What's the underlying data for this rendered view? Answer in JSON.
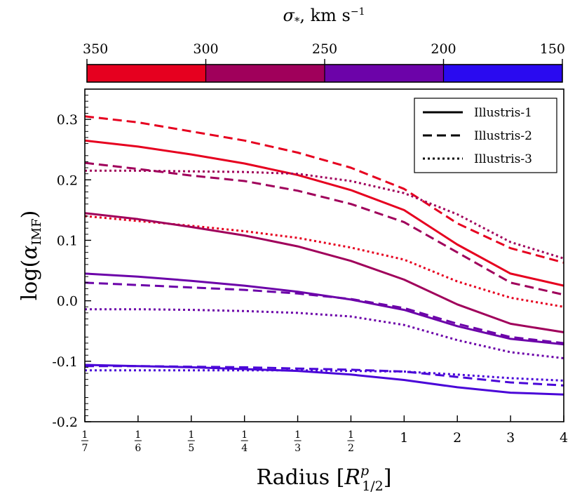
{
  "chart_data": {
    "type": "line",
    "title": "",
    "xlabel": "Radius [R^p_{1/2}]",
    "ylabel": "log(α_IMF)",
    "ylim": [
      -0.2,
      0.35
    ],
    "x_ticks": [
      "1/7",
      "1/6",
      "1/5",
      "1/4",
      "1/3",
      "1/2",
      "1",
      "2",
      "3",
      "4"
    ],
    "y_ticks": [
      -0.2,
      -0.1,
      0.0,
      0.1,
      0.2,
      0.3
    ],
    "y_tick_labels": [
      "-0.2",
      "-0.1",
      "0.0",
      "0.1",
      "0.2",
      "0.3"
    ],
    "legend": {
      "position": "top-right",
      "entries": [
        {
          "label": "Illustris-1",
          "style": "solid"
        },
        {
          "label": "Illustris-2",
          "style": "dashed"
        },
        {
          "label": "Illustris-3",
          "style": "dotted"
        }
      ]
    },
    "colorbar": {
      "label": "σ*, km s^-1",
      "tick_labels": [
        "350",
        "300",
        "250",
        "200",
        "150"
      ],
      "colors": [
        "#e6001f",
        "#a0005b",
        "#6c03a9",
        "#2a0af0"
      ]
    },
    "series": [
      {
        "name": "Illustris-1 σ 300–350",
        "style": "solid",
        "color": "#e6001f",
        "values": [
          0.265,
          0.255,
          0.242,
          0.227,
          0.208,
          0.183,
          0.15,
          0.093,
          0.045,
          0.025
        ]
      },
      {
        "name": "Illustris-2 σ 300–350",
        "style": "dashed",
        "color": "#e6001f",
        "values": [
          0.305,
          0.295,
          0.28,
          0.265,
          0.245,
          0.22,
          0.185,
          0.128,
          0.087,
          0.063
        ]
      },
      {
        "name": "Illustris-3 σ 300–350",
        "style": "dotted",
        "color": "#e6001f",
        "values": [
          0.14,
          0.132,
          0.124,
          0.115,
          0.104,
          0.088,
          0.068,
          0.032,
          0.005,
          -0.01
        ]
      },
      {
        "name": "Illustris-1 σ 250–300",
        "style": "solid",
        "color": "#a0005b",
        "values": [
          0.145,
          0.135,
          0.122,
          0.108,
          0.09,
          0.066,
          0.035,
          -0.006,
          -0.038,
          -0.052
        ]
      },
      {
        "name": "Illustris-2 σ 250–300",
        "style": "dashed",
        "color": "#a0005b",
        "values": [
          0.228,
          0.218,
          0.207,
          0.198,
          0.182,
          0.16,
          0.13,
          0.08,
          0.03,
          0.01
        ]
      },
      {
        "name": "Illustris-3 σ 250–300",
        "style": "dotted",
        "color": "#a0005b",
        "values": [
          0.215,
          0.215,
          0.214,
          0.213,
          0.21,
          0.198,
          0.178,
          0.143,
          0.097,
          0.07
        ]
      },
      {
        "name": "Illustris-1 σ 200–250",
        "style": "solid",
        "color": "#6c03a9",
        "values": [
          0.045,
          0.04,
          0.033,
          0.025,
          0.015,
          0.002,
          -0.015,
          -0.042,
          -0.063,
          -0.072
        ]
      },
      {
        "name": "Illustris-2 σ 200–250",
        "style": "dashed",
        "color": "#6c03a9",
        "values": [
          0.03,
          0.026,
          0.022,
          0.018,
          0.012,
          0.003,
          -0.012,
          -0.038,
          -0.06,
          -0.07
        ]
      },
      {
        "name": "Illustris-3 σ 200–250",
        "style": "dotted",
        "color": "#6c03a9",
        "values": [
          -0.014,
          -0.014,
          -0.015,
          -0.017,
          -0.02,
          -0.026,
          -0.04,
          -0.065,
          -0.085,
          -0.095
        ]
      },
      {
        "name": "Illustris-1 σ 150–200",
        "style": "solid",
        "color": "#4a06d8",
        "values": [
          -0.106,
          -0.108,
          -0.11,
          -0.113,
          -0.116,
          -0.122,
          -0.131,
          -0.143,
          -0.152,
          -0.155
        ]
      },
      {
        "name": "Illustris-2 σ 150–200",
        "style": "dashed",
        "color": "#4a06d8",
        "values": [
          -0.108,
          -0.108,
          -0.109,
          -0.11,
          -0.112,
          -0.114,
          -0.117,
          -0.126,
          -0.135,
          -0.14
        ]
      },
      {
        "name": "Illustris-3 σ 150–200",
        "style": "dotted",
        "color": "#4a06d8",
        "values": [
          -0.115,
          -0.115,
          -0.115,
          -0.115,
          -0.115,
          -0.116,
          -0.117,
          -0.122,
          -0.128,
          -0.132
        ]
      }
    ]
  }
}
